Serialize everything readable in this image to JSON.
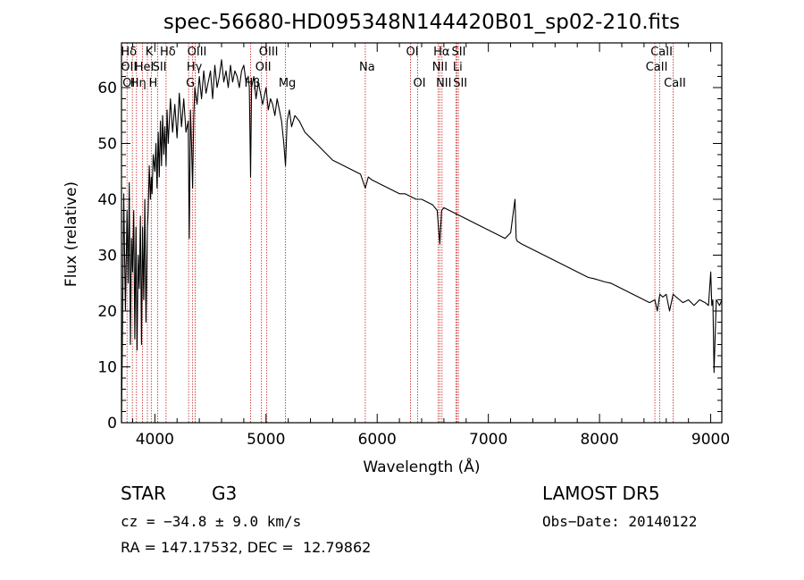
{
  "chart_data": {
    "type": "line",
    "title": "spec-56680-HD095348N144420B01_sp02-210.fits",
    "xlabel": "Wavelength (Å)",
    "ylabel": "Flux (relative)",
    "xlim": [
      3700,
      9100
    ],
    "ylim": [
      0,
      68
    ],
    "xticks": [
      4000,
      5000,
      6000,
      7000,
      8000,
      9000
    ],
    "yticks": [
      0,
      10,
      20,
      30,
      40,
      50,
      60
    ],
    "series": [
      {
        "x": [
          3700,
          3710,
          3720,
          3735,
          3750,
          3760,
          3770,
          3780,
          3790,
          3800,
          3810,
          3820,
          3830,
          3840,
          3850,
          3860,
          3870,
          3880,
          3890,
          3900,
          3910,
          3920,
          3933,
          3940,
          3950,
          3960,
          3968,
          3975,
          3985,
          4000,
          4010,
          4020,
          4030,
          4040,
          4050,
          4060,
          4070,
          4080,
          4090,
          4101,
          4110,
          4120,
          4140,
          4160,
          4180,
          4200,
          4220,
          4240,
          4260,
          4280,
          4300,
          4310,
          4320,
          4330,
          4340,
          4350,
          4360,
          4380,
          4400,
          4420,
          4440,
          4460,
          4480,
          4500,
          4520,
          4540,
          4560,
          4580,
          4600,
          4620,
          4640,
          4660,
          4680,
          4700,
          4720,
          4740,
          4760,
          4780,
          4800,
          4820,
          4840,
          4850,
          4861,
          4870,
          4890,
          4910,
          4930,
          4950,
          4970,
          5000,
          5020,
          5040,
          5060,
          5080,
          5100,
          5120,
          5140,
          5160,
          5175,
          5190,
          5210,
          5230,
          5260,
          5300,
          5350,
          5400,
          5450,
          5500,
          5550,
          5600,
          5650,
          5700,
          5750,
          5800,
          5850,
          5893,
          5920,
          5950,
          6000,
          6050,
          6100,
          6150,
          6200,
          6250,
          6300,
          6350,
          6400,
          6450,
          6500,
          6540,
          6563,
          6580,
          6600,
          6650,
          6700,
          6750,
          6800,
          6850,
          6900,
          6950,
          7000,
          7050,
          7100,
          7150,
          7200,
          7240,
          7250,
          7260,
          7300,
          7350,
          7400,
          7450,
          7500,
          7550,
          7600,
          7650,
          7700,
          7750,
          7800,
          7850,
          7900,
          7950,
          8000,
          8050,
          8100,
          8150,
          8200,
          8250,
          8300,
          8350,
          8400,
          8450,
          8498,
          8520,
          8542,
          8570,
          8600,
          8630,
          8662,
          8690,
          8720,
          8750,
          8800,
          8850,
          8900,
          8950,
          8980,
          9000,
          9010,
          9020,
          9030,
          9050,
          9080,
          9100
        ],
        "y": [
          0,
          18,
          41,
          20,
          38,
          25,
          43,
          14,
          33,
          27,
          38,
          15,
          35,
          13,
          30,
          24,
          37,
          14,
          35,
          22,
          40,
          18,
          35,
          38,
          46,
          40,
          44,
          41,
          48,
          45,
          50,
          42,
          52,
          44,
          54,
          46,
          55,
          48,
          53,
          46,
          56,
          50,
          58,
          52,
          57,
          51,
          59,
          53,
          58,
          52,
          54,
          33,
          56,
          50,
          42,
          55,
          60,
          57,
          62,
          58,
          63,
          59,
          61,
          63,
          58,
          64,
          60,
          62,
          65,
          61,
          63,
          60,
          64,
          61,
          63,
          62,
          60,
          63,
          64,
          61,
          62,
          60,
          44,
          60,
          62,
          58,
          61,
          59,
          57,
          60,
          56,
          58,
          57,
          55,
          58,
          56,
          54,
          50,
          46,
          54,
          56,
          53,
          55,
          54,
          52,
          51,
          50,
          49,
          48,
          47,
          46.5,
          46,
          45.5,
          45,
          44.5,
          42,
          44,
          43.5,
          43,
          42.5,
          42,
          41.5,
          41,
          41,
          40.5,
          40,
          40,
          39.5,
          39,
          38,
          32,
          38,
          38.5,
          38,
          37.5,
          37,
          36.5,
          36,
          35.5,
          35,
          34.5,
          34,
          33.5,
          33,
          34,
          40,
          33,
          32.5,
          32,
          31.5,
          31,
          30.5,
          30,
          29.5,
          29,
          28.5,
          28,
          27.5,
          27,
          26.5,
          26,
          25.8,
          25.5,
          25.2,
          25,
          24.5,
          24,
          23.5,
          23,
          22.5,
          22,
          21.5,
          22,
          20,
          23,
          22.5,
          23,
          20,
          23,
          22.5,
          22,
          21.5,
          22,
          21,
          22,
          21.5,
          21,
          27,
          21,
          22,
          9,
          22,
          21,
          22
        ]
      }
    ],
    "lines": [
      {
        "x": 3750,
        "labels": [
          "Hδ",
          "OII",
          "OI"
        ]
      },
      {
        "x": 3798,
        "labels": [
          "",
          "",
          ""
        ]
      },
      {
        "x": 3835,
        "labels": [
          "",
          "",
          "Hη"
        ]
      },
      {
        "x": 3889,
        "labels": [
          "",
          "HeI",
          ""
        ]
      },
      {
        "x": 3933,
        "labels": [
          "K",
          "",
          ""
        ]
      },
      {
        "x": 3968,
        "labels": [
          "",
          "",
          "H"
        ]
      },
      {
        "x": 4026,
        "labels": [
          "",
          "SII",
          ""
        ]
      },
      {
        "x": 4101,
        "labels": [
          "Hδ",
          "",
          ""
        ]
      },
      {
        "x": 4304,
        "labels": [
          "",
          "",
          "G"
        ]
      },
      {
        "x": 4340,
        "labels": [
          "",
          "Hγ",
          ""
        ]
      },
      {
        "x": 4363,
        "labels": [
          "OIII",
          "",
          ""
        ]
      },
      {
        "x": 4861,
        "labels": [
          "",
          "",
          "Hβ"
        ]
      },
      {
        "x": 4959,
        "labels": [
          "",
          "OII",
          ""
        ]
      },
      {
        "x": 5007,
        "labels": [
          "OIII",
          "",
          ""
        ]
      },
      {
        "x": 5175,
        "labels": [
          "",
          "",
          "Mg"
        ]
      },
      {
        "x": 5893,
        "labels": [
          "",
          "Na",
          ""
        ]
      },
      {
        "x": 6300,
        "labels": [
          "OI",
          "",
          ""
        ]
      },
      {
        "x": 6364,
        "labels": [
          "",
          "",
          "OI"
        ]
      },
      {
        "x": 6548,
        "labels": [
          "",
          "NII",
          ""
        ]
      },
      {
        "x": 6563,
        "labels": [
          "Hα",
          "",
          ""
        ]
      },
      {
        "x": 6583,
        "labels": [
          "",
          "",
          "NII"
        ]
      },
      {
        "x": 6708,
        "labels": [
          "",
          "Li",
          ""
        ]
      },
      {
        "x": 6717,
        "labels": [
          "SII",
          "",
          ""
        ]
      },
      {
        "x": 6731,
        "labels": [
          "",
          "",
          "SII"
        ]
      },
      {
        "x": 8498,
        "labels": [
          "",
          "CaII",
          ""
        ]
      },
      {
        "x": 8542,
        "labels": [
          "CaII",
          "",
          ""
        ]
      },
      {
        "x": 8662,
        "labels": [
          "",
          "",
          "CaII"
        ]
      }
    ],
    "line_color": "#cc3333",
    "grid": false
  },
  "footer": {
    "object_class": "STAR",
    "subclass": "G3",
    "cz": "cz = −34.8 ± 9.0 km/s",
    "coords": "RA = 147.17532, DEC =  12.79862",
    "survey": "LAMOST DR5",
    "obs_date": "Obs−Date: 20140122"
  }
}
